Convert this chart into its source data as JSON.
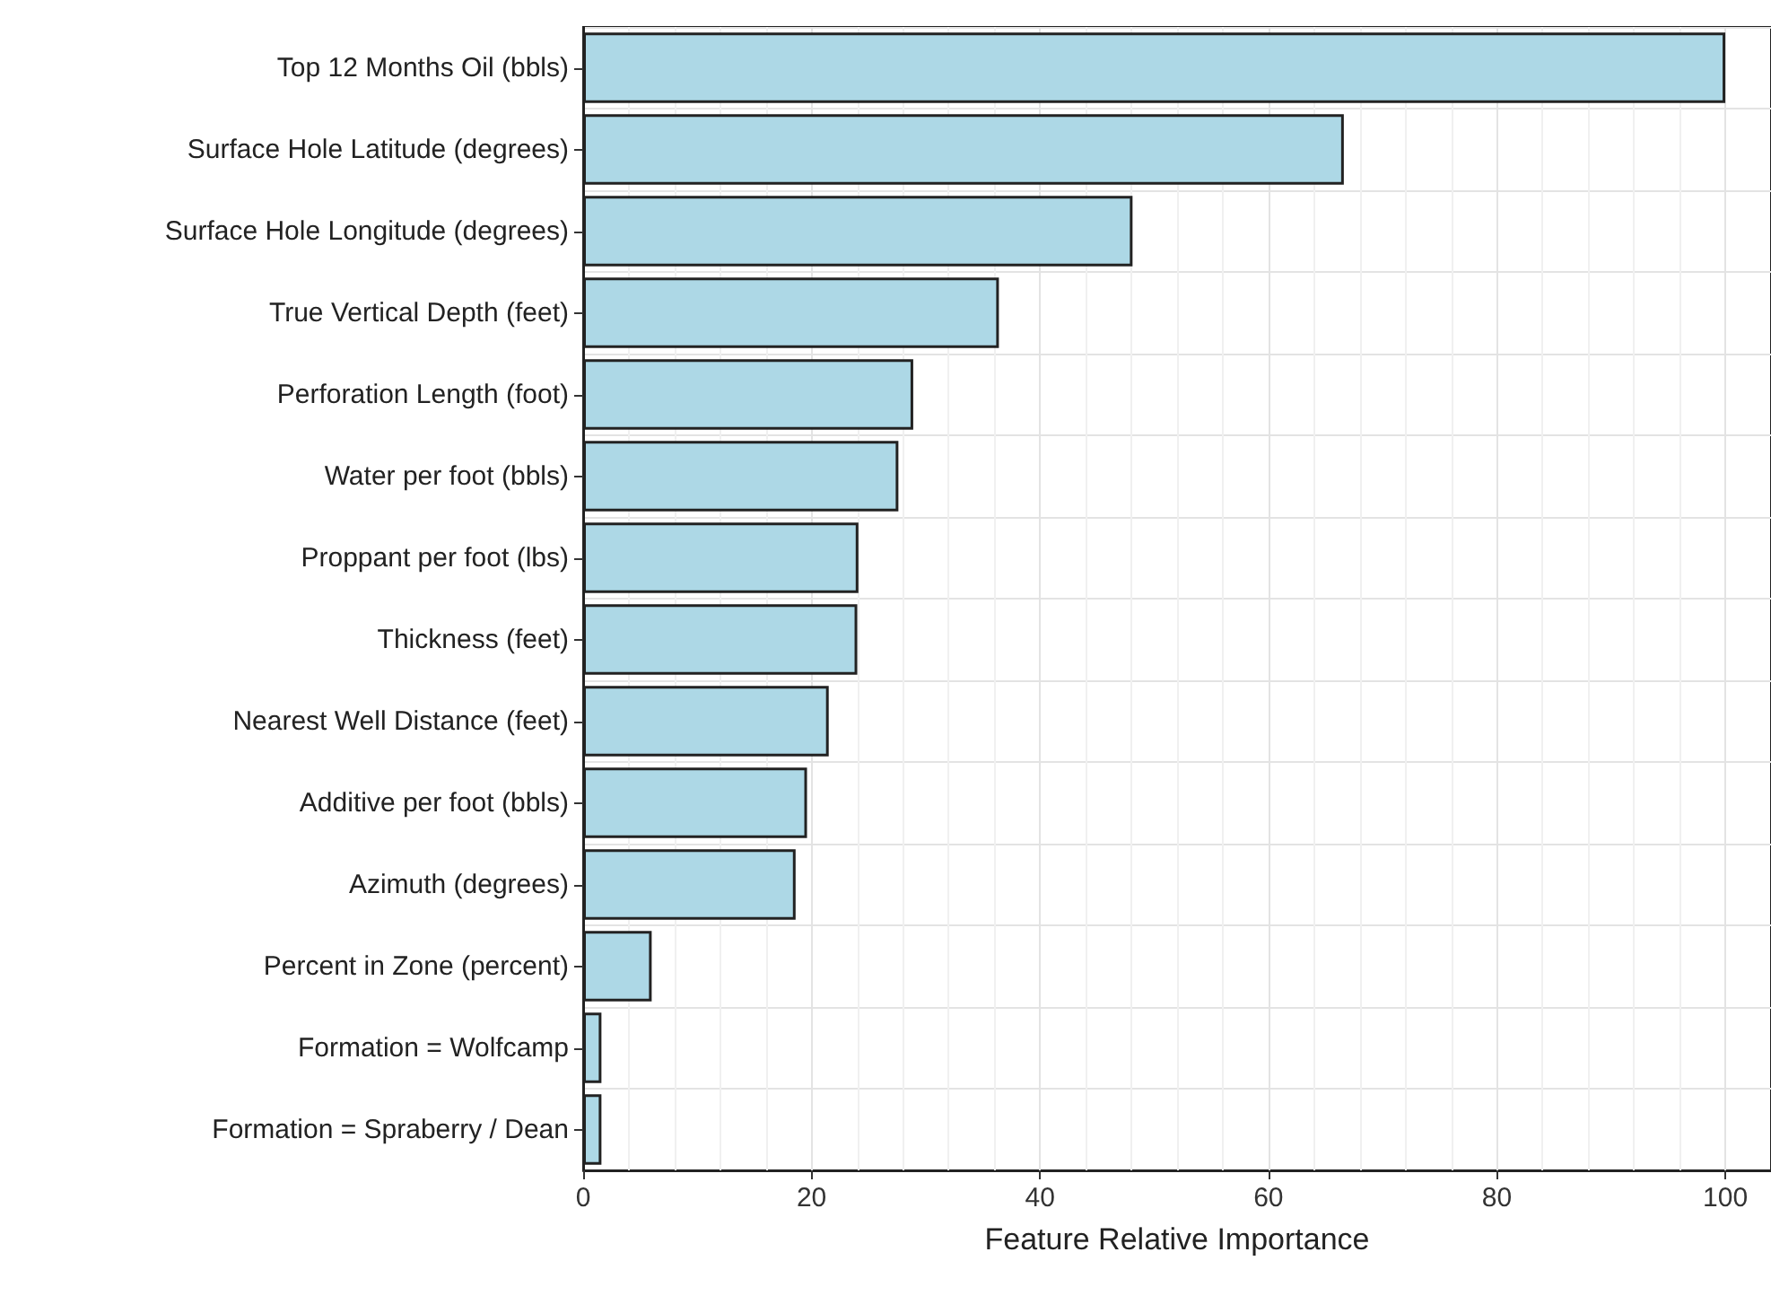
{
  "chart_data": {
    "type": "bar",
    "orientation": "horizontal",
    "xlabel": "Feature Relative Importance",
    "categories": [
      "Top 12 Months Oil (bbls)",
      "Surface Hole Latitude (degrees)",
      "Surface Hole Longitude (degrees)",
      "True Vertical Depth (feet)",
      "Perforation Length (foot)",
      "Water per foot (bbls)",
      "Proppant per foot (lbs)",
      "Thickness (feet)",
      "Nearest Well Distance (feet)",
      "Additive per foot (bbls)",
      "Azimuth (degrees)",
      "Percent in Zone (percent)",
      "Formation = Wolfcamp",
      "Formation = Spraberry / Dean"
    ],
    "values": [
      100,
      66.6,
      48.1,
      36.4,
      28.9,
      27.6,
      24.1,
      24.0,
      21.5,
      19.6,
      18.6,
      6.0,
      1.6,
      1.6
    ],
    "color": "#add8e6",
    "xlim": [
      0,
      104
    ],
    "xticks": [
      0,
      20,
      40,
      60,
      80,
      100
    ],
    "grid": true
  }
}
